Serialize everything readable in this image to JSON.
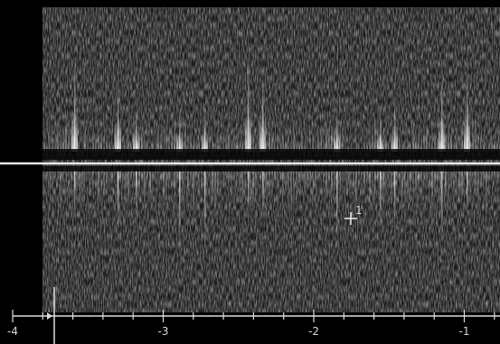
{
  "axis": {
    "ticks": [
      "-4",
      "-3",
      "-2",
      "-1"
    ]
  },
  "cursor": {
    "label": "1"
  }
}
